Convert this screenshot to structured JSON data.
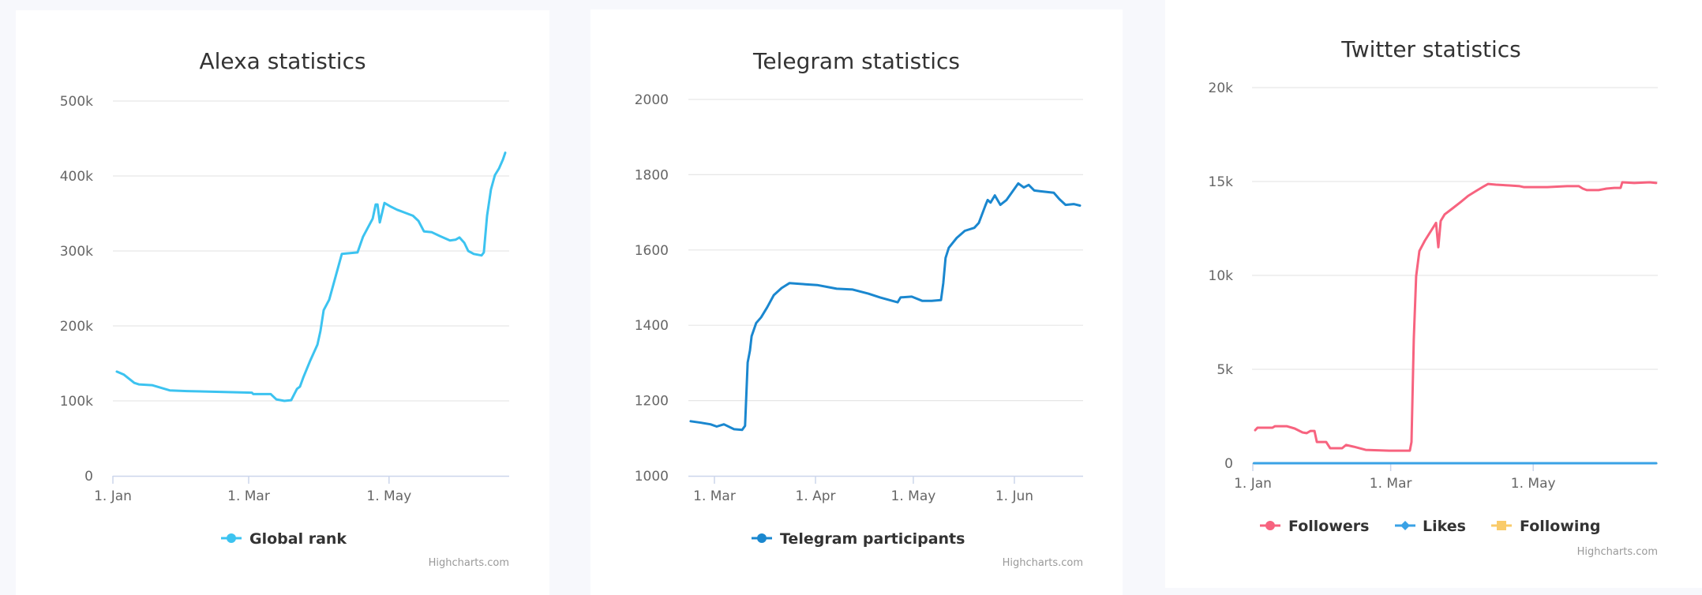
{
  "colors": {
    "background": "#f7f8fc",
    "panel": "#ffffff",
    "global_rank": "#3cc3f0",
    "telegram": "#1a87cf",
    "followers": "#f7637f",
    "likes": "#3aa2e6",
    "following": "#f9cb6a"
  },
  "chart_data": [
    {
      "id": "alexa",
      "type": "line",
      "title": "Alexa statistics",
      "xlabel": "",
      "ylabel": "",
      "x_unit": "day-of-year (0 = 1 Jan)",
      "xlim": [
        0,
        172
      ],
      "ylim": [
        0,
        500000
      ],
      "yticks": [
        {
          "value": 0,
          "label": "0"
        },
        {
          "value": 100000,
          "label": "100k"
        },
        {
          "value": 200000,
          "label": "200k"
        },
        {
          "value": 300000,
          "label": "300k"
        },
        {
          "value": 400000,
          "label": "400k"
        },
        {
          "value": 500000,
          "label": "500k"
        }
      ],
      "xticks": [
        {
          "value": 0,
          "label": "1. Jan"
        },
        {
          "value": 59,
          "label": "1. Mar"
        },
        {
          "value": 120,
          "label": "1. May"
        }
      ],
      "grid": true,
      "legend_position": "bottom-center",
      "credit": "Highcharts.com",
      "series": [
        {
          "name": "Global rank",
          "color_key": "global_rank",
          "x": [
            1.7,
            4.8,
            9.3,
            11.3,
            17,
            24.7,
            32.2,
            60.4,
            61,
            68.6,
            71,
            74.5,
            77.5,
            80,
            81.3,
            82.7,
            85.8,
            88.9,
            90.2,
            91.6,
            94,
            99.5,
            106.3,
            108.7,
            112.9,
            114.2,
            115,
            116,
            118,
            120.8,
            123.5,
            127,
            130.4,
            132.8,
            135.2,
            138.6,
            142,
            146.5,
            148.9,
            150.6,
            152.7,
            154.4,
            156.8,
            160.2,
            161.2,
            162.6,
            164.3,
            166,
            167.8,
            169.5,
            170.5
          ],
          "values": [
            139000,
            135000,
            124000,
            122000,
            121000,
            114000,
            113000,
            111000,
            109000,
            109000,
            102000,
            100000,
            101000,
            116000,
            119000,
            131000,
            154000,
            175000,
            193000,
            221000,
            235000,
            296000,
            298000,
            319000,
            343000,
            362000,
            362000,
            338000,
            364000,
            359000,
            355000,
            351000,
            347000,
            340000,
            326000,
            325000,
            320000,
            314000,
            315000,
            318000,
            311000,
            300000,
            296000,
            294000,
            298000,
            347000,
            382000,
            401000,
            410000,
            422000,
            431000
          ]
        }
      ]
    },
    {
      "id": "telegram",
      "type": "line",
      "title": "Telegram statistics",
      "xlabel": "",
      "ylabel": "",
      "x_unit": "day-of-year (0 = 1 Jan)",
      "xlim": [
        51,
        172
      ],
      "ylim": [
        1000,
        2000
      ],
      "yticks": [
        {
          "value": 1000,
          "label": "1000"
        },
        {
          "value": 1200,
          "label": "1200"
        },
        {
          "value": 1400,
          "label": "1400"
        },
        {
          "value": 1600,
          "label": "1600"
        },
        {
          "value": 1800,
          "label": "1800"
        },
        {
          "value": 2000,
          "label": "2000"
        }
      ],
      "xticks": [
        {
          "value": 59,
          "label": "1. Mar"
        },
        {
          "value": 90,
          "label": "1. Apr"
        },
        {
          "value": 120,
          "label": "1. May"
        },
        {
          "value": 151,
          "label": "1. Jun"
        }
      ],
      "grid": true,
      "legend_position": "bottom-center",
      "credit": "Highcharts.com",
      "series": [
        {
          "name": "Telegram participants",
          "color_key": "telegram",
          "x": [
            51.7,
            54.9,
            57.8,
            59.7,
            61.9,
            65,
            67.5,
            68.4,
            69.2,
            69.9,
            70.4,
            71.8,
            73.3,
            75.2,
            77.2,
            79.6,
            82,
            86.8,
            90.5,
            94.1,
            96.5,
            101.4,
            106.2,
            109.8,
            113.5,
            115.2,
            116.1,
            119.5,
            122.7,
            125.6,
            128.5,
            129.2,
            129.9,
            130.9,
            133.3,
            135.8,
            138.7,
            140.1,
            142.1,
            142.8,
            143.7,
            145,
            146.7,
            148.6,
            152.2,
            153.9,
            155.4,
            157.1,
            159,
            163.1,
            164.8,
            166.7,
            169.2,
            171.1
          ],
          "values": [
            1145,
            1141,
            1137,
            1131,
            1137,
            1124,
            1122,
            1133,
            1301,
            1333,
            1371,
            1406,
            1421,
            1448,
            1480,
            1499,
            1512,
            1509,
            1507,
            1501,
            1497,
            1495,
            1484,
            1474,
            1465,
            1461,
            1474,
            1476,
            1465,
            1465,
            1467,
            1512,
            1579,
            1606,
            1632,
            1651,
            1659,
            1672,
            1718,
            1733,
            1726,
            1745,
            1720,
            1733,
            1777,
            1766,
            1773,
            1758,
            1756,
            1752,
            1735,
            1720,
            1722,
            1718
          ]
        }
      ]
    },
    {
      "id": "twitter",
      "type": "line",
      "title": "Twitter statistics",
      "xlabel": "",
      "ylabel": "",
      "x_unit": "day-of-year (0 = 1 Jan)",
      "xlim": [
        0,
        173
      ],
      "ylim": [
        0,
        20000
      ],
      "yticks": [
        {
          "value": 0,
          "label": "0"
        },
        {
          "value": 5000,
          "label": "5k"
        },
        {
          "value": 10000,
          "label": "10k"
        },
        {
          "value": 15000,
          "label": "15k"
        },
        {
          "value": 20000,
          "label": "20k"
        }
      ],
      "xticks": [
        {
          "value": 0,
          "label": "1. Jan"
        },
        {
          "value": 59,
          "label": "1. Mar"
        },
        {
          "value": 120,
          "label": "1. May"
        }
      ],
      "grid": true,
      "legend_position": "bottom-center",
      "credit": "Highcharts.com",
      "series": [
        {
          "name": "Followers",
          "color_key": "followers",
          "x": [
            1,
            2,
            8.4,
            9.5,
            14.5,
            17.9,
            21.3,
            23,
            24.7,
            26.4,
            27.4,
            31.4,
            33.1,
            38.2,
            39.9,
            43.2,
            48.3,
            58.4,
            67.2,
            67.9,
            68.9,
            69.9,
            71.3,
            73.6,
            78.4,
            79.4,
            80.4,
            82.1,
            85.5,
            88.9,
            92.2,
            95.6,
            99,
            100.7,
            104,
            109.8,
            114.2,
            115.9,
            126,
            134.5,
            139.5,
            141.2,
            142.9,
            148,
            151.4,
            154.7,
            157.4,
            158.1,
            163.2,
            169.9,
            172.6
          ],
          "values": [
            1760,
            1890,
            1890,
            1970,
            1970,
            1850,
            1640,
            1600,
            1720,
            1720,
            1130,
            1130,
            800,
            800,
            970,
            880,
            710,
            670,
            670,
            1130,
            6600,
            9960,
            11300,
            11850,
            12800,
            11500,
            12900,
            13250,
            13570,
            13900,
            14240,
            14500,
            14750,
            14870,
            14830,
            14790,
            14750,
            14700,
            14700,
            14750,
            14750,
            14620,
            14540,
            14540,
            14620,
            14660,
            14660,
            14960,
            14920,
            14960,
            14920
          ]
        },
        {
          "name": "Likes",
          "color_key": "likes",
          "x": [
            0.5,
            172.6
          ],
          "values": [
            0,
            0
          ]
        },
        {
          "name": "Following",
          "color_key": "following",
          "x": [
            0.5,
            172.6
          ],
          "values": [
            0,
            0
          ]
        }
      ]
    }
  ]
}
